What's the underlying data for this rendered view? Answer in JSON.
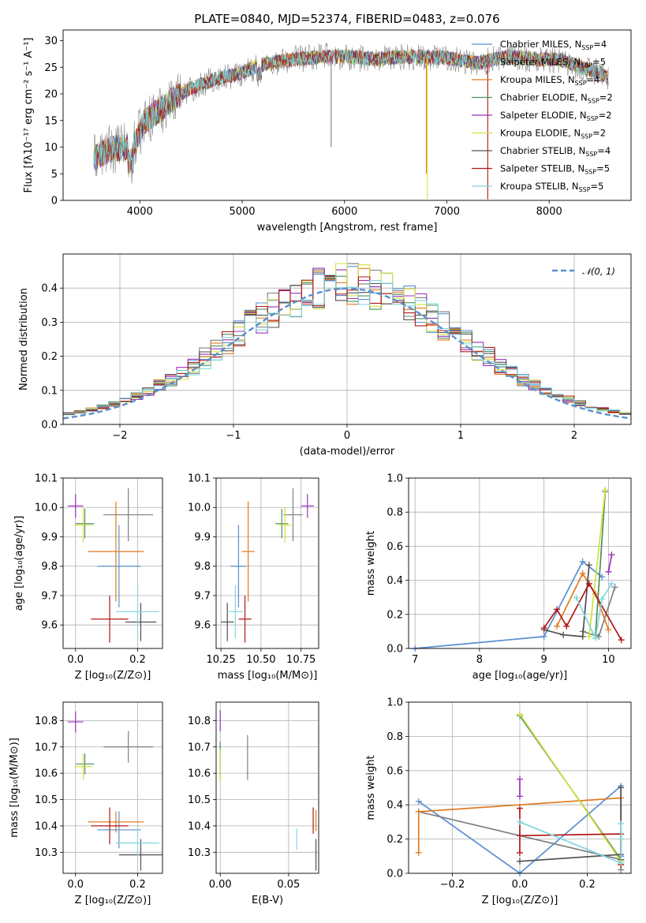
{
  "figure_title": "PLATE=0840, MJD=52374, FIBERID=0483, z=0.076",
  "colors": {
    "series": [
      "#5a8fd0",
      "#7f7f7f",
      "#e07b20",
      "#4f8f5f",
      "#9b30c0",
      "#d4e040",
      "#505050",
      "#b01818",
      "#80d8e0"
    ],
    "labeled": {
      "Chabrier MILES": "#5a8fd0",
      "Salpeter MILES": "#7f7f7f",
      "Kroupa MILES": "#e07b20",
      "Chabrier ELODIE": "#4f8f5f",
      "Salpeter ELODIE": "#9b30c0",
      "Kroupa ELODIE": "#d4e040",
      "Chabrier STELIB": "#505050",
      "Salpeter STELIB": "#b01818",
      "Kroupa STELIB": "#80d8e0"
    },
    "gauss": "#5a8fd0",
    "grid": "#b0b0b0"
  },
  "chart_data": [
    {
      "id": "spectrum",
      "type": "line",
      "xlabel": "wavelength [Angstrom, rest frame]",
      "ylabel": "Flux [fλ10⁻¹⁷ erg cm⁻² s⁻¹ A⁻¹]",
      "xlim": [
        3250,
        8800
      ],
      "ylim": [
        0,
        32
      ],
      "xticks": [
        4000,
        5000,
        6000,
        7000,
        8000
      ],
      "yticks": [
        0,
        5,
        10,
        15,
        20,
        25,
        30
      ],
      "grid": false,
      "legend_position": "top-right",
      "continuum_knots": [
        [
          3550,
          8
        ],
        [
          3700,
          9.5
        ],
        [
          3850,
          10
        ],
        [
          3950,
          10.5
        ],
        [
          4050,
          15
        ],
        [
          4200,
          17
        ],
        [
          4350,
          19.5
        ],
        [
          4500,
          21
        ],
        [
          4700,
          22.5
        ],
        [
          5000,
          24
        ],
        [
          5200,
          25.5
        ],
        [
          5500,
          26.5
        ],
        [
          5800,
          27
        ],
        [
          6000,
          27
        ],
        [
          6300,
          26.5
        ],
        [
          6600,
          27
        ],
        [
          7000,
          26.8
        ],
        [
          7300,
          25.8
        ],
        [
          7600,
          27
        ],
        [
          7900,
          26.5
        ],
        [
          8100,
          26.5
        ],
        [
          8300,
          25
        ],
        [
          8500,
          24
        ],
        [
          8580,
          23
        ]
      ],
      "legend": [
        {
          "label": "Chabrier MILES, N",
          "sub": "SSP",
          "eq": "=4"
        },
        {
          "label": "Salpeter MILES, N",
          "sub": "SSP",
          "eq": "=5"
        },
        {
          "label": "Kroupa MILES, N",
          "sub": "SSP",
          "eq": "=4"
        },
        {
          "label": "Chabrier ELODIE, N",
          "sub": "SSP",
          "eq": "=2"
        },
        {
          "label": "Salpeter ELODIE, N",
          "sub": "SSP",
          "eq": "=2"
        },
        {
          "label": "Kroupa ELODIE, N",
          "sub": "SSP",
          "eq": "=2"
        },
        {
          "label": "Chabrier STELIB, N",
          "sub": "SSP",
          "eq": "=4"
        },
        {
          "label": "Salpeter STELIB, N",
          "sub": "SSP",
          "eq": "=5"
        },
        {
          "label": "Kroupa STELIB, N",
          "sub": "SSP",
          "eq": "=5"
        }
      ]
    },
    {
      "id": "residuals",
      "type": "step",
      "xlabel": "(data-model)/error",
      "ylabel": "Normed distribution",
      "xlim": [
        -2.5,
        2.5
      ],
      "ylim": [
        0,
        0.5
      ],
      "xticks": [
        -2,
        -1,
        0,
        1,
        2
      ],
      "xticklabels": [
        "−2",
        "−1",
        "0",
        "1",
        "2"
      ],
      "yticks": [
        0.0,
        0.1,
        0.2,
        0.3,
        0.4
      ],
      "yticklabels": [
        "0.0",
        "0.1",
        "0.2",
        "0.3",
        "0.4"
      ],
      "grid": true,
      "legend_position": "top-right",
      "legend": "𝒩(0, 1)",
      "gaussian": {
        "mean": 0,
        "sigma": 1,
        "xmin": -2.5,
        "xmax": 2.5
      }
    },
    {
      "id": "age_vs_Z",
      "type": "errorbar",
      "xlabel": "Z [log₁₀(Z/Z⊙)]",
      "ylabel": "age  [log₁₀(age/yr)]",
      "xlim": [
        -0.04,
        0.28
      ],
      "ylim": [
        9.52,
        10.1
      ],
      "xticks": [
        0.0,
        0.2
      ],
      "xticklabels": [
        "0.0",
        "0.2"
      ],
      "yticks": [
        9.6,
        9.7,
        9.8,
        9.9,
        10.0,
        10.1
      ],
      "yticklabels": [
        "9.6",
        "9.7",
        "9.8",
        "9.9",
        "10.0",
        "10.1"
      ],
      "grid": true,
      "points": [
        {
          "series": 0,
          "x": 0.14,
          "xerr": 0.07,
          "y": 9.8,
          "yerr": 0.14
        },
        {
          "series": 1,
          "x": 0.17,
          "xerr": 0.08,
          "y": 9.975,
          "yerr": 0.09
        },
        {
          "series": 2,
          "x": 0.13,
          "xerr": 0.09,
          "y": 9.85,
          "yerr": 0.17
        },
        {
          "series": 3,
          "x": 0.03,
          "xerr": 0.03,
          "y": 9.945,
          "yerr": 0.05
        },
        {
          "series": 4,
          "x": 0.0,
          "xerr": 0.025,
          "y": 10.005,
          "yerr": 0.04
        },
        {
          "series": 5,
          "x": 0.025,
          "xerr": 0.03,
          "y": 9.94,
          "yerr": 0.06
        },
        {
          "series": 6,
          "x": 0.21,
          "xerr": 0.05,
          "y": 9.61,
          "yerr": 0.065
        },
        {
          "series": 7,
          "x": 0.11,
          "xerr": 0.06,
          "y": 9.62,
          "yerr": 0.08
        },
        {
          "series": 8,
          "x": 0.2,
          "xerr": 0.07,
          "y": 9.645,
          "yerr": 0.09
        }
      ]
    },
    {
      "id": "age_vs_mass",
      "type": "errorbar",
      "xlabel": "mass [log₁₀(M/M⊙)]",
      "ylabel": "",
      "xlim": [
        10.22,
        10.86
      ],
      "ylim": [
        9.52,
        10.1
      ],
      "xticks": [
        10.25,
        10.5,
        10.75
      ],
      "xticklabels": [
        "10.25",
        "10.50",
        "10.75"
      ],
      "yticks": [
        9.6,
        9.7,
        9.8,
        9.9,
        10.0,
        10.1
      ],
      "yticklabels": [
        "9.6",
        "9.7",
        "9.8",
        "9.9",
        "10.0",
        "10.1"
      ],
      "grid": true,
      "points": [
        {
          "series": 0,
          "x": 10.36,
          "xerr": 0.05,
          "y": 9.8,
          "yerr": 0.14
        },
        {
          "series": 1,
          "x": 10.7,
          "xerr": 0.06,
          "y": 9.975,
          "yerr": 0.09
        },
        {
          "series": 2,
          "x": 10.42,
          "xerr": 0.04,
          "y": 9.85,
          "yerr": 0.17
        },
        {
          "series": 3,
          "x": 10.63,
          "xerr": 0.04,
          "y": 9.945,
          "yerr": 0.05
        },
        {
          "series": 4,
          "x": 10.79,
          "xerr": 0.04,
          "y": 10.005,
          "yerr": 0.04
        },
        {
          "series": 5,
          "x": 10.65,
          "xerr": 0.04,
          "y": 9.94,
          "yerr": 0.06
        },
        {
          "series": 6,
          "x": 10.29,
          "xerr": 0.04,
          "y": 9.61,
          "yerr": 0.065
        },
        {
          "series": 7,
          "x": 10.4,
          "xerr": 0.04,
          "y": 9.62,
          "yerr": 0.08
        },
        {
          "series": 8,
          "x": 10.34,
          "xerr": 0.05,
          "y": 9.645,
          "yerr": 0.09
        }
      ]
    },
    {
      "id": "weight_vs_age",
      "type": "line",
      "xlabel": "age  [log₁₀(age/yr)]",
      "ylabel": "mass weight",
      "xlim": [
        6.9,
        10.35
      ],
      "ylim": [
        0,
        1.0
      ],
      "xticks": [
        7,
        8,
        9,
        10
      ],
      "xticklabels": [
        "7",
        "8",
        "9",
        "10"
      ],
      "yticks": [
        0.0,
        0.2,
        0.4,
        0.6,
        0.8,
        1.0
      ],
      "yticklabels": [
        "0.0",
        "0.2",
        "0.4",
        "0.6",
        "0.8",
        "1.0"
      ],
      "grid": true,
      "series": [
        {
          "series": 0,
          "x": [
            7.0,
            9.0,
            9.6,
            9.9
          ],
          "y": [
            0.0,
            0.07,
            0.51,
            0.42
          ]
        },
        {
          "series": 1,
          "x": [
            9.6,
            9.85,
            10.1
          ],
          "y": [
            0.1,
            0.07,
            0.36
          ]
        },
        {
          "series": 2,
          "x": [
            9.2,
            9.6,
            9.8,
            10.0
          ],
          "y": [
            0.13,
            0.44,
            0.32,
            0.11
          ]
        },
        {
          "series": 3,
          "x": [
            9.8,
            9.95
          ],
          "y": [
            0.08,
            0.92
          ]
        },
        {
          "series": 4,
          "x": [
            10.0,
            10.05
          ],
          "y": [
            0.45,
            0.55
          ]
        },
        {
          "series": 5,
          "x": [
            9.7,
            9.95
          ],
          "y": [
            0.07,
            0.93
          ]
        },
        {
          "series": 6,
          "x": [
            9.0,
            9.3,
            9.6,
            9.7
          ],
          "y": [
            0.11,
            0.08,
            0.07,
            0.49
          ]
        },
        {
          "series": 7,
          "x": [
            9.0,
            9.2,
            9.35,
            9.7,
            10.2
          ],
          "y": [
            0.12,
            0.23,
            0.13,
            0.38,
            0.05
          ]
        },
        {
          "series": 8,
          "x": [
            9.5,
            9.8,
            9.9,
            10.05
          ],
          "y": [
            0.3,
            0.06,
            0.29,
            0.38
          ]
        }
      ]
    },
    {
      "id": "mass_vs_Z",
      "type": "errorbar",
      "xlabel": "Z [log₁₀(Z/Z⊙)]",
      "ylabel": "mass [log₁₀(M/M⊙)]",
      "xlim": [
        -0.04,
        0.28
      ],
      "ylim": [
        10.22,
        10.87
      ],
      "xticks": [
        0.0,
        0.2
      ],
      "xticklabels": [
        "0.0",
        "0.2"
      ],
      "yticks": [
        10.3,
        10.4,
        10.5,
        10.6,
        10.7,
        10.8
      ],
      "yticklabels": [
        "10.3",
        "10.4",
        "10.5",
        "10.6",
        "10.7",
        "10.8"
      ],
      "grid": true,
      "points": [
        {
          "series": 0,
          "x": 0.14,
          "xerr": 0.07,
          "y": 10.385,
          "yerr": 0.07
        },
        {
          "series": 1,
          "x": 0.17,
          "xerr": 0.08,
          "y": 10.7,
          "yerr": 0.06
        },
        {
          "series": 2,
          "x": 0.13,
          "xerr": 0.09,
          "y": 10.415,
          "yerr": 0.04
        },
        {
          "series": 3,
          "x": 0.03,
          "xerr": 0.03,
          "y": 10.635,
          "yerr": 0.04
        },
        {
          "series": 4,
          "x": 0.0,
          "xerr": 0.025,
          "y": 10.795,
          "yerr": 0.04
        },
        {
          "series": 5,
          "x": 0.025,
          "xerr": 0.03,
          "y": 10.625,
          "yerr": 0.05
        },
        {
          "series": 6,
          "x": 0.21,
          "xerr": 0.07,
          "y": 10.29,
          "yerr": 0.06
        },
        {
          "series": 7,
          "x": 0.11,
          "xerr": 0.06,
          "y": 10.4,
          "yerr": 0.07
        },
        {
          "series": 8,
          "x": 0.2,
          "xerr": 0.07,
          "y": 10.335,
          "yerr": 0.05
        }
      ]
    },
    {
      "id": "mass_vs_EBV",
      "type": "errorbar",
      "xlabel": "E(B-V)",
      "ylabel": "",
      "xlim": [
        -0.003,
        0.072
      ],
      "ylim": [
        10.22,
        10.87
      ],
      "xticks": [
        0.0,
        0.05
      ],
      "xticklabels": [
        "0.00",
        "0.05"
      ],
      "yticks": [
        10.3,
        10.4,
        10.5,
        10.6,
        10.7,
        10.8
      ],
      "yticklabels": [
        "10.3",
        "10.4",
        "10.5",
        "10.6",
        "10.7",
        "10.8"
      ],
      "grid": true,
      "points": [
        {
          "series": 1,
          "x": 0.02,
          "xerr": 0,
          "y": 10.66,
          "yerr": 0.085
        },
        {
          "series": 3,
          "x": 0.0,
          "xerr": 0,
          "y": 10.65,
          "yerr": 0.07
        },
        {
          "series": 4,
          "x": 0.0,
          "xerr": 0,
          "y": 10.8,
          "yerr": 0.04
        },
        {
          "series": 5,
          "x": 0.0,
          "xerr": 0,
          "y": 10.63,
          "yerr": 0.06
        },
        {
          "series": 6,
          "x": 0.07,
          "xerr": 0,
          "y": 10.29,
          "yerr": 0.06
        },
        {
          "series": 7,
          "x": 0.068,
          "xerr": 0,
          "y": 10.42,
          "yerr": 0.05
        },
        {
          "series": 2,
          "x": 0.07,
          "xerr": 0,
          "y": 10.42,
          "yerr": 0.04
        },
        {
          "series": 8,
          "x": 0.056,
          "xerr": 0,
          "y": 10.35,
          "yerr": 0.04
        }
      ]
    },
    {
      "id": "weight_vs_Z",
      "type": "line",
      "xlabel": "Z [log₁₀(Z/Z⊙)]",
      "ylabel": "mass weight",
      "xlim": [
        -0.33,
        0.33
      ],
      "ylim": [
        0,
        1.0
      ],
      "xticks": [
        -0.2,
        0.0,
        0.2
      ],
      "xticklabels": [
        "−0.2",
        "0.0",
        "0.2"
      ],
      "yticks": [
        0.0,
        0.2,
        0.4,
        0.6,
        0.8,
        1.0
      ],
      "yticklabels": [
        "0.0",
        "0.2",
        "0.4",
        "0.6",
        "0.8",
        "1.0"
      ],
      "grid": true,
      "series": [
        {
          "series": 0,
          "x": [
            -0.3,
            0.0,
            0.3,
            0.3
          ],
          "y": [
            0.42,
            0.0,
            0.51,
            0.1
          ]
        },
        {
          "series": 1,
          "x": [
            -0.3,
            0.3,
            0.3
          ],
          "y": [
            0.36,
            0.08,
            0.02
          ]
        },
        {
          "series": 2,
          "x": [
            -0.3,
            -0.3,
            0.3,
            0.3
          ],
          "y": [
            0.12,
            0.36,
            0.44,
            0.05
          ]
        },
        {
          "series": 3,
          "x": [
            0.0,
            0.3
          ],
          "y": [
            0.92,
            0.08
          ]
        },
        {
          "series": 4,
          "x": [
            0.0,
            0.0
          ],
          "y": [
            0.45,
            0.55
          ]
        },
        {
          "series": 5,
          "x": [
            0.0,
            0.3
          ],
          "y": [
            0.93,
            0.07
          ]
        },
        {
          "series": 6,
          "x": [
            0.0,
            0.3,
            0.3,
            0.3
          ],
          "y": [
            0.07,
            0.11,
            0.5,
            0.08
          ]
        },
        {
          "series": 7,
          "x": [
            0.0,
            0.0,
            0.0,
            0.3,
            0.3
          ],
          "y": [
            0.12,
            0.38,
            0.22,
            0.23,
            0.05
          ]
        },
        {
          "series": 8,
          "x": [
            0.0,
            0.3,
            0.3,
            0.3
          ],
          "y": [
            0.3,
            0.06,
            0.29,
            0.2
          ]
        }
      ]
    }
  ]
}
